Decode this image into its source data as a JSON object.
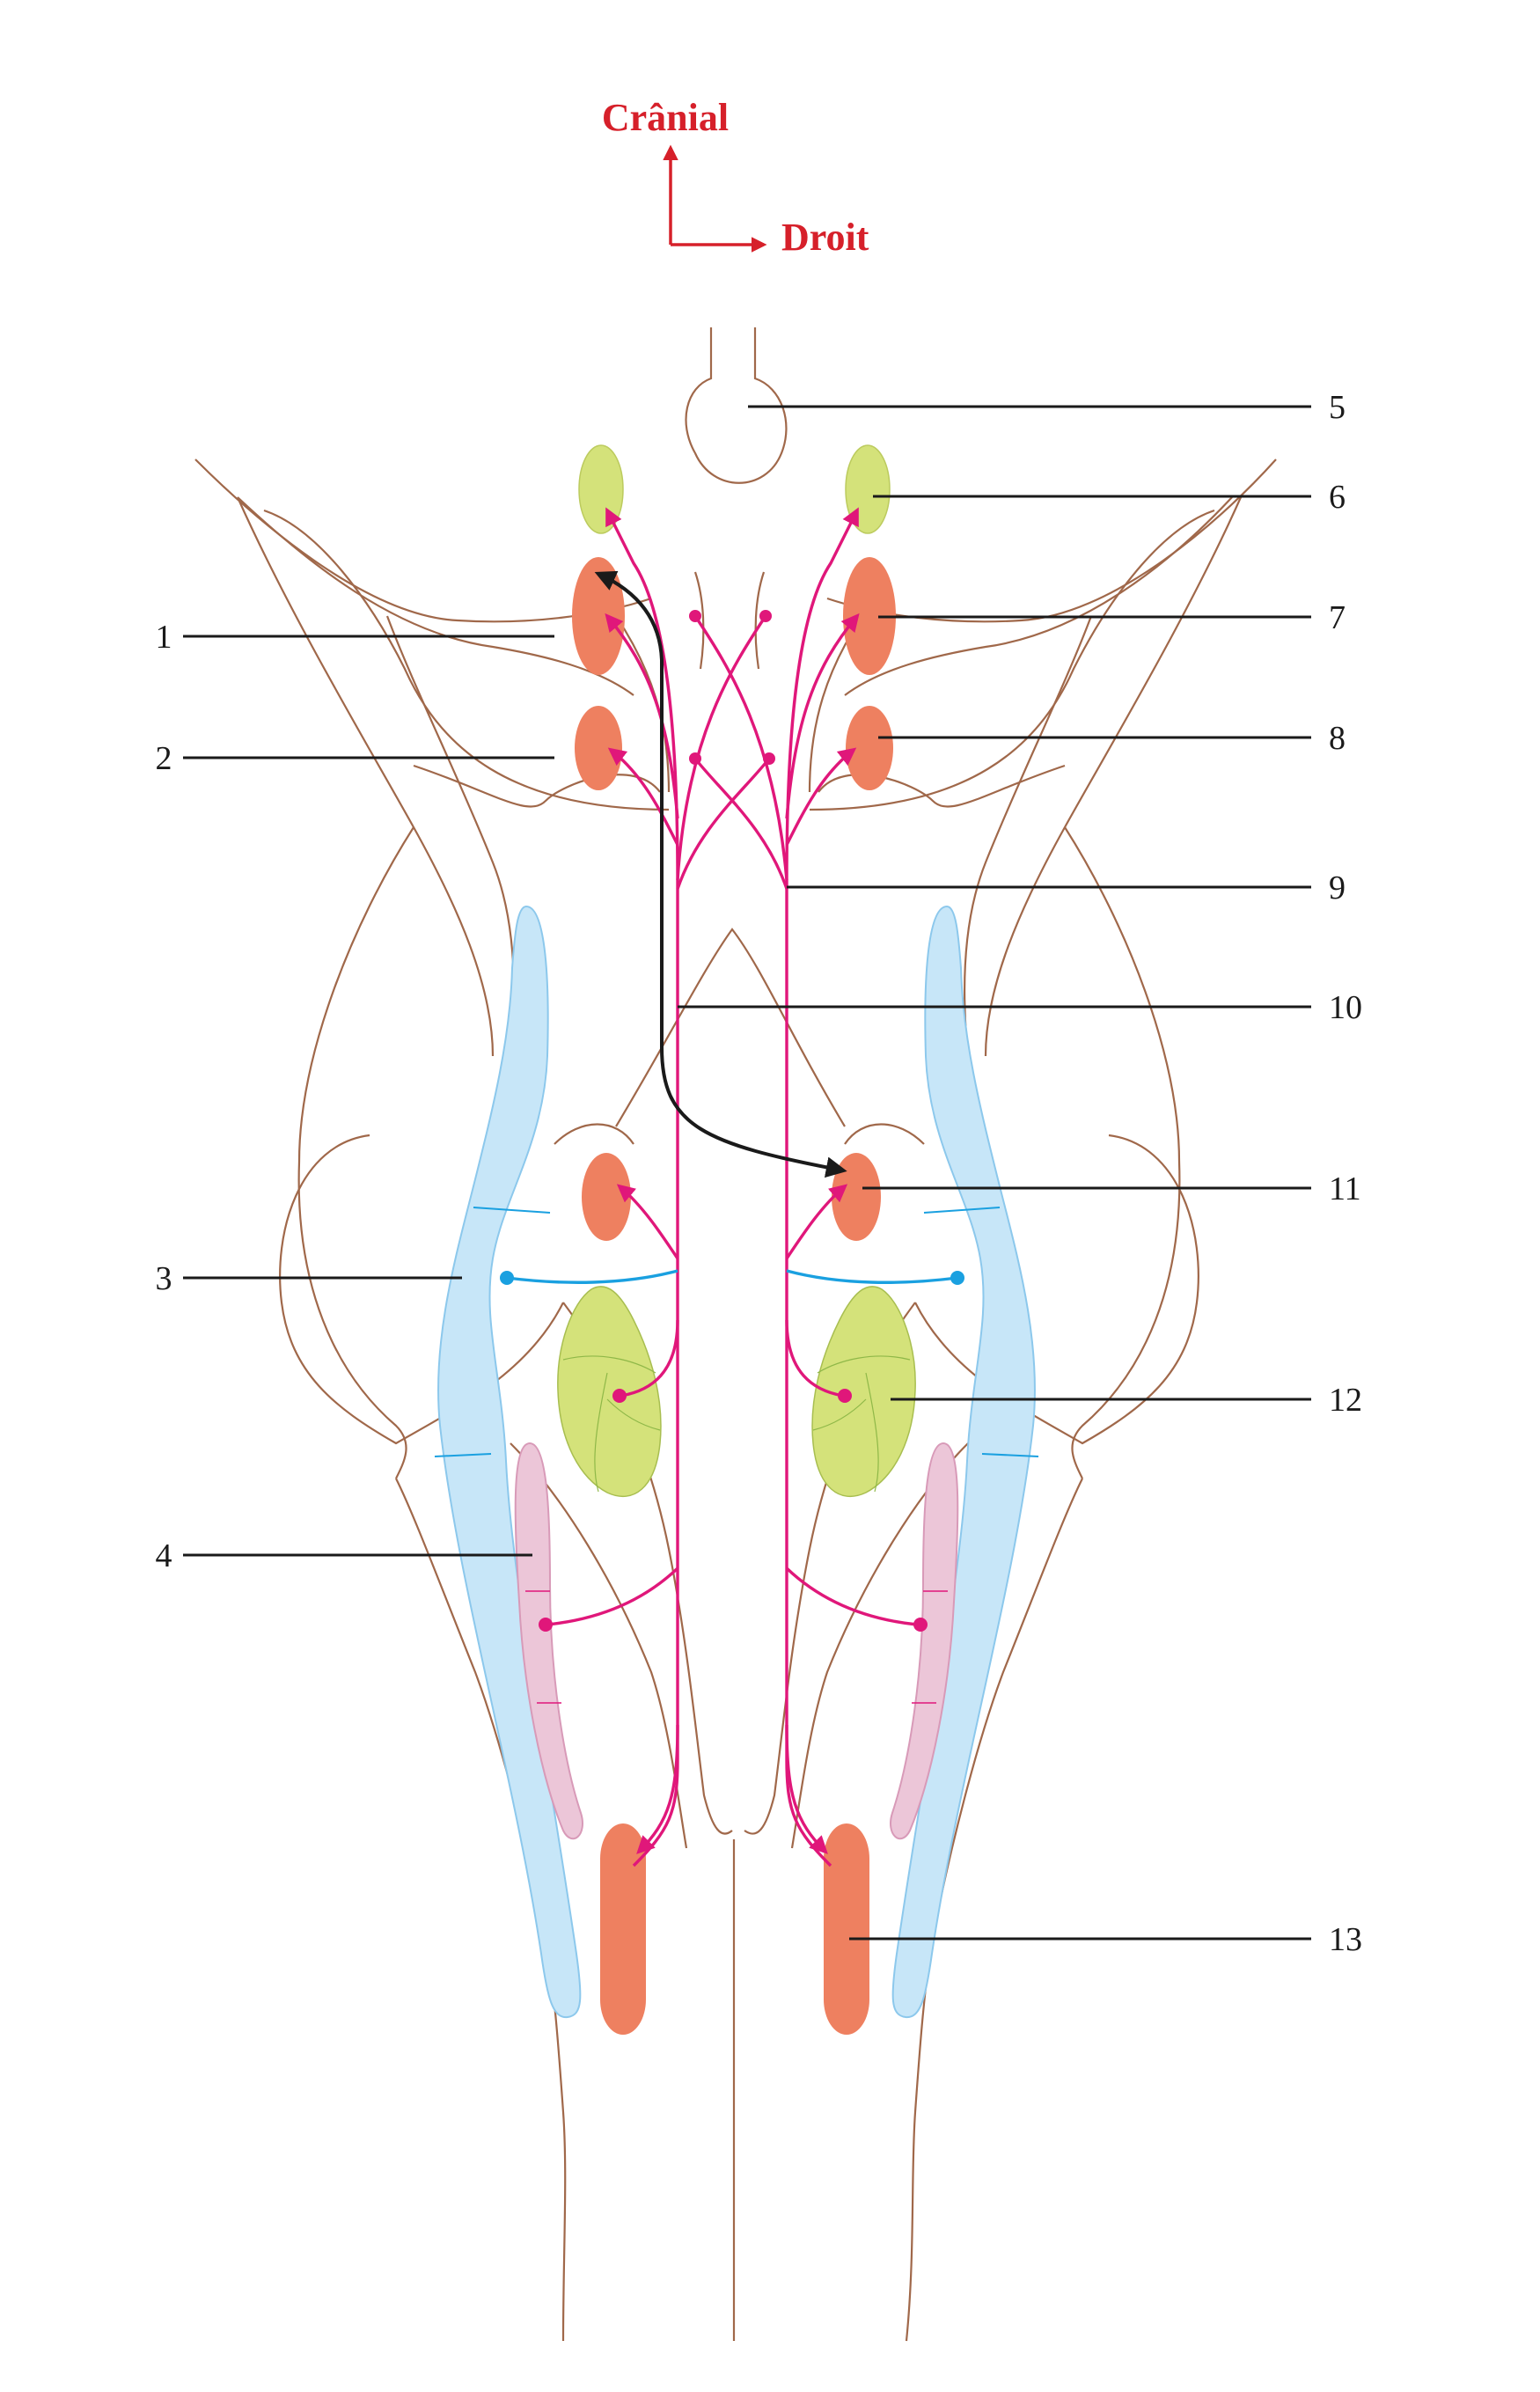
{
  "orientation": {
    "cranial_label": "Crânial",
    "right_label": "Droit",
    "color": "#d6202a"
  },
  "labels": {
    "l1": "1",
    "l2": "2",
    "l3": "3",
    "l4": "4",
    "l5": "5",
    "l6": "6",
    "l7": "7",
    "l8": "8",
    "l9": "9",
    "l10": "10",
    "l11": "11",
    "l12": "12",
    "l13": "13"
  },
  "colors": {
    "outline": "#a0684a",
    "motor_nucleus": "#ee8060",
    "yellow_green_nucleus": "#d4e27a",
    "blue_column": "#c7e6f8",
    "pink_column": "#ecc6d8",
    "fiber": "#e0177a",
    "black_arrow": "#1a1a1a",
    "blue_fiber": "#1aa0e0"
  }
}
